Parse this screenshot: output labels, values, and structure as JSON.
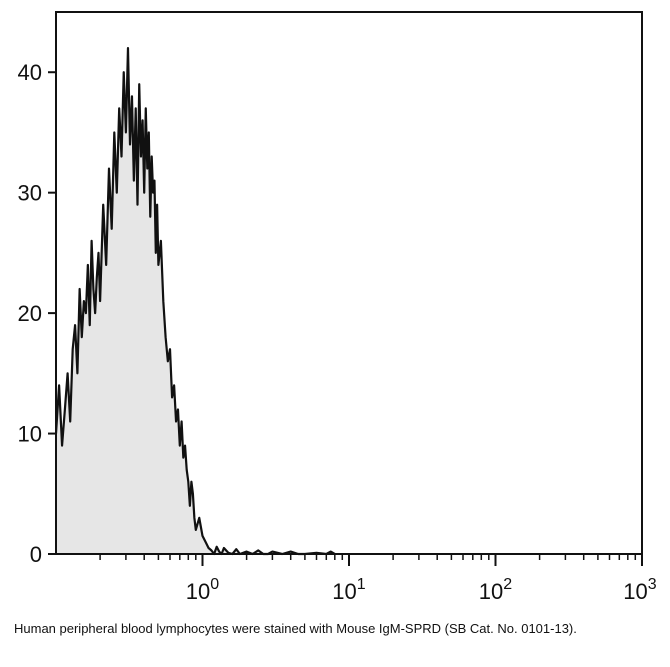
{
  "chart_data": {
    "type": "area",
    "x_scale": "log",
    "xlim": [
      0.1,
      1000
    ],
    "ylim": [
      0,
      45
    ],
    "grid": false,
    "legend": "none",
    "x_ticks": [
      {
        "value": 1,
        "base": "10",
        "exp": "0"
      },
      {
        "value": 10,
        "base": "10",
        "exp": "1"
      },
      {
        "value": 100,
        "base": "10",
        "exp": "2"
      },
      {
        "value": 1000,
        "base": "10",
        "exp": "3"
      }
    ],
    "y_ticks": [
      {
        "value": 0,
        "label": "0"
      },
      {
        "value": 10,
        "label": "10"
      },
      {
        "value": 20,
        "label": "20"
      },
      {
        "value": 30,
        "label": "30"
      },
      {
        "value": 40,
        "label": "40"
      }
    ],
    "series": [
      {
        "fill": "#e6e6e6",
        "stroke": "#111111",
        "x": [
          0.1,
          0.105,
          0.11,
          0.115,
          0.12,
          0.125,
          0.13,
          0.135,
          0.14,
          0.145,
          0.15,
          0.155,
          0.16,
          0.165,
          0.17,
          0.175,
          0.18,
          0.185,
          0.19,
          0.195,
          0.2,
          0.21,
          0.22,
          0.23,
          0.24,
          0.25,
          0.26,
          0.27,
          0.28,
          0.29,
          0.3,
          0.31,
          0.32,
          0.33,
          0.34,
          0.35,
          0.36,
          0.37,
          0.38,
          0.39,
          0.4,
          0.41,
          0.42,
          0.43,
          0.44,
          0.45,
          0.46,
          0.47,
          0.48,
          0.49,
          0.5,
          0.52,
          0.54,
          0.56,
          0.58,
          0.6,
          0.62,
          0.64,
          0.66,
          0.68,
          0.7,
          0.72,
          0.74,
          0.76,
          0.78,
          0.8,
          0.82,
          0.84,
          0.86,
          0.88,
          0.9,
          0.95,
          1.0,
          1.05,
          1.1,
          1.15,
          1.2,
          1.25,
          1.3,
          1.35,
          1.4,
          1.5,
          1.6,
          1.7,
          1.8,
          2.0,
          2.2,
          2.4,
          2.6,
          2.8,
          3.0,
          3.5,
          4.0,
          4.5,
          5.0,
          6.0,
          7.0,
          7.5,
          8.0
        ],
        "y": [
          10,
          14,
          9,
          12,
          15,
          11,
          17,
          19,
          15,
          22,
          18,
          21,
          20,
          24,
          19,
          26,
          22,
          20,
          23,
          25,
          21,
          29,
          24,
          32,
          27,
          35,
          30,
          37,
          33,
          40,
          35,
          42,
          34,
          38,
          31,
          37,
          29,
          39,
          33,
          36,
          30,
          37,
          32,
          35,
          28,
          33,
          30,
          31,
          25,
          29,
          24,
          26,
          21,
          18,
          16,
          17,
          13,
          14,
          11,
          12,
          9,
          11,
          8,
          9,
          7,
          6,
          4,
          6,
          5,
          3,
          2,
          3,
          1.5,
          1,
          0.5,
          0.3,
          0,
          0.6,
          0.2,
          0,
          0.5,
          0.1,
          0,
          0.4,
          0,
          0.2,
          0,
          0.3,
          0,
          0,
          0.2,
          0,
          0.2,
          0,
          0,
          0.1,
          0,
          0.2,
          0
        ]
      }
    ]
  },
  "caption": "Human peripheral blood lymphocytes were stained with Mouse IgM-SPRD (SB Cat. No. 0101-13)."
}
